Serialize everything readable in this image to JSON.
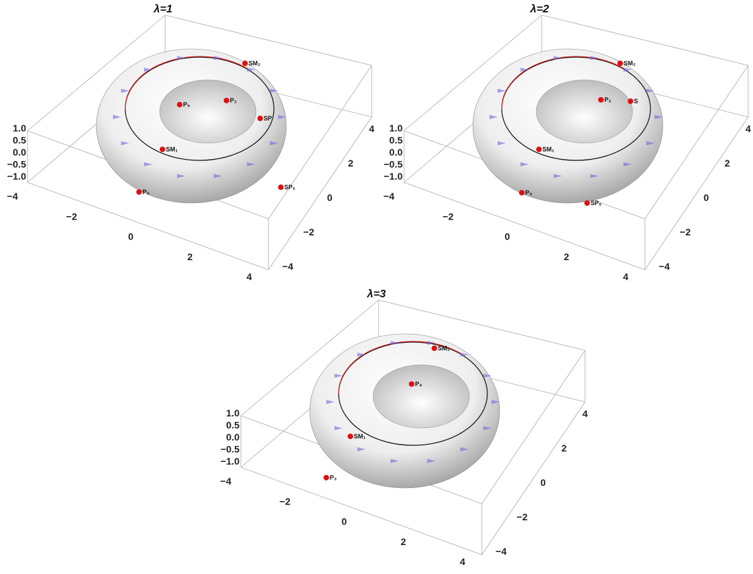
{
  "panels": [
    {
      "title": "λ=1",
      "zticks": [
        "1.0",
        "0.5",
        "0.0",
        "−0.5",
        "−1.0"
      ],
      "xticks": [
        "−4",
        "−2",
        "0",
        "2",
        "4"
      ],
      "yticks": [
        "4",
        "2",
        "0",
        "−2",
        "−4"
      ],
      "labels": [
        "P₅",
        "SP",
        "P₂",
        "SM₂",
        "SM₁",
        "P₃",
        "SP₆"
      ]
    },
    {
      "title": "λ=2",
      "zticks": [
        "1.0",
        "0.5",
        "0.0",
        "−0.5",
        "−1.0"
      ],
      "xticks": [
        "−4",
        "−2",
        "0",
        "2",
        "4"
      ],
      "yticks": [
        "4",
        "2",
        "0",
        "−2",
        "−4"
      ],
      "labels": [
        "SM₂",
        "P₂",
        "S",
        "SM₁",
        "P₃",
        "SP₆"
      ]
    },
    {
      "title": "λ=3",
      "zticks": [
        "1.0",
        "0.5",
        "0.0",
        "−0.5",
        "−1.0"
      ],
      "xticks": [
        "−4",
        "−2",
        "0",
        "2",
        "4"
      ],
      "yticks": [
        "4",
        "2",
        "0",
        "−2",
        "−4"
      ],
      "labels": [
        "SM₂",
        "P₄",
        "SM₁",
        "P₃"
      ]
    }
  ]
}
